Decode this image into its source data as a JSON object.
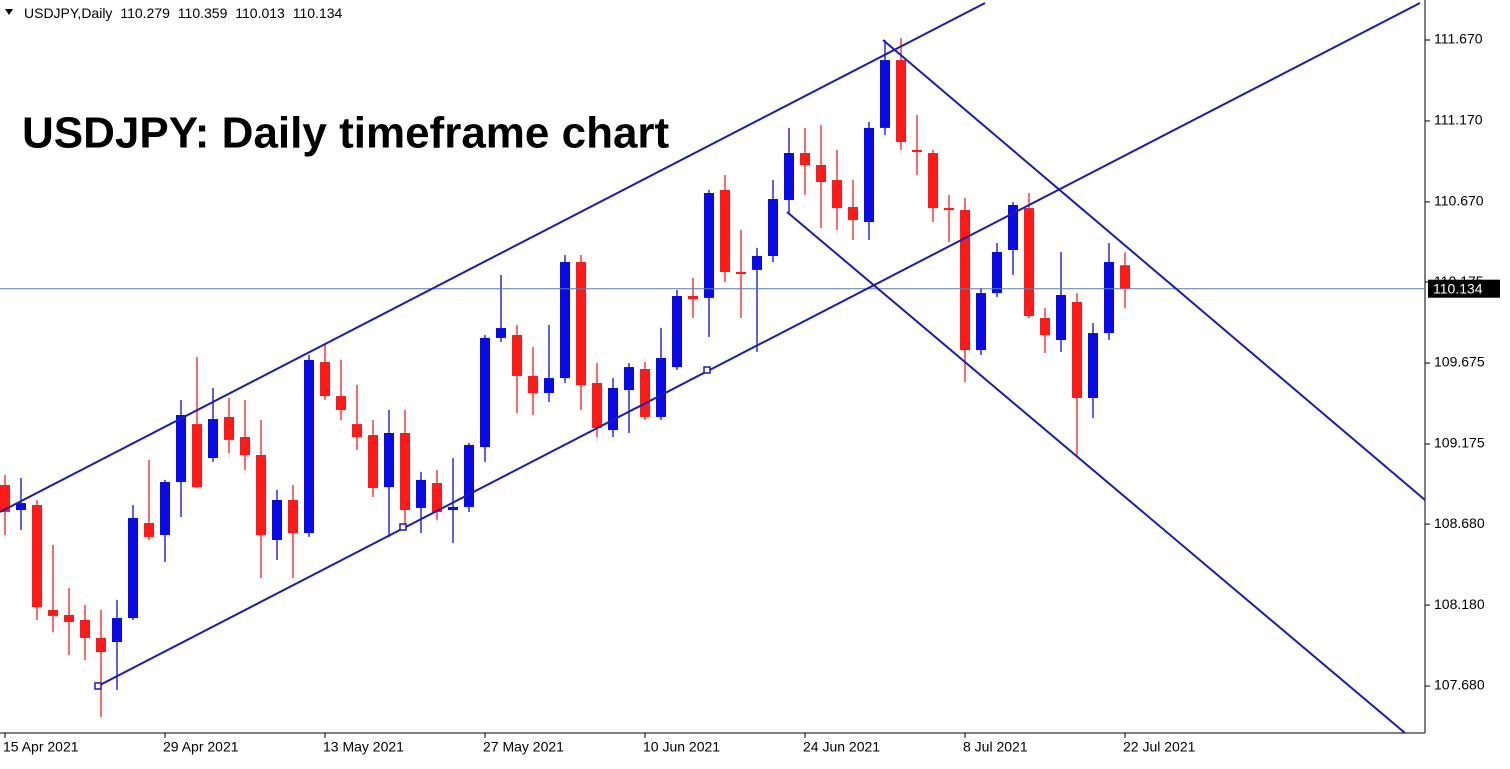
{
  "chart_data": {
    "type": "candlestick",
    "symbol": "USDJPY,Daily",
    "title": "USDJPY: Daily timeframe chart",
    "categories": [
      "15 Apr 2021",
      null,
      null,
      null,
      null,
      null,
      null,
      null,
      null,
      null,
      "29 Apr 2021",
      null,
      null,
      null,
      null,
      null,
      null,
      null,
      null,
      null,
      "13 May 2021",
      null,
      null,
      null,
      null,
      null,
      null,
      null,
      null,
      null,
      "27 May 2021",
      null,
      null,
      null,
      null,
      null,
      null,
      null,
      null,
      null,
      "10 Jun 2021",
      null,
      null,
      null,
      null,
      null,
      null,
      null,
      null,
      null,
      "24 Jun 2021",
      null,
      null,
      null,
      null,
      null,
      null,
      null,
      null,
      null,
      "8 Jul 2021",
      null,
      null,
      null,
      null,
      null,
      null,
      null,
      null,
      null,
      "22 Jul 2021"
    ],
    "open": [
      108.922,
      108.767,
      108.798,
      108.15,
      108.119,
      108.088,
      107.977,
      107.952,
      108.1,
      108.687,
      108.613,
      108.94,
      109.298,
      109.088,
      109.342,
      109.218,
      109.107,
      108.582,
      108.829,
      108.625,
      109.681,
      109.471,
      109.298,
      109.23,
      108.909,
      109.243,
      108.78,
      108.934,
      108.767,
      108.786,
      109.156,
      109.83,
      109.848,
      109.595,
      109.49,
      109.582,
      110.299,
      109.552,
      109.261,
      109.508,
      109.638,
      109.342,
      109.65,
      110.089,
      110.077,
      110.744,
      110.237,
      110.25,
      110.336,
      110.682,
      110.972,
      110.898,
      110.805,
      110.639,
      110.546,
      111.127,
      111.546,
      110.991,
      110.972,
      110.632,
      110.62,
      109.755,
      110.107,
      110.373,
      110.632,
      109.953,
      109.817,
      110.052,
      109.459,
      109.86,
      110.279
    ],
    "high": [
      108.983,
      108.965,
      108.829,
      108.551,
      108.286,
      108.181,
      108.15,
      108.211,
      108.798,
      109.076,
      108.953,
      109.447,
      109.712,
      109.521,
      109.459,
      109.447,
      109.323,
      108.891,
      108.922,
      109.725,
      109.786,
      109.694,
      109.539,
      109.323,
      109.385,
      109.385,
      109.002,
      109.014,
      109.088,
      109.181,
      109.848,
      110.219,
      109.91,
      109.774,
      109.91,
      110.342,
      110.342,
      109.675,
      109.582,
      109.675,
      109.681,
      109.891,
      110.126,
      110.2,
      110.744,
      110.836,
      110.497,
      110.385,
      110.805,
      111.127,
      111.127,
      111.145,
      110.991,
      110.805,
      111.164,
      111.67,
      111.682,
      111.207,
      110.991,
      110.713,
      110.694,
      110.138,
      110.416,
      110.669,
      110.725,
      110.015,
      110.361,
      110.107,
      109.922,
      110.416,
      110.359
    ],
    "low": [
      108.613,
      108.644,
      108.088,
      108.014,
      107.872,
      107.841,
      107.489,
      107.656,
      108.088,
      108.582,
      108.446,
      108.724,
      108.903,
      109.064,
      109.119,
      109.014,
      108.347,
      108.458,
      108.347,
      108.601,
      109.447,
      109.323,
      109.138,
      108.848,
      108.601,
      108.675,
      108.625,
      108.706,
      108.563,
      108.755,
      109.064,
      109.805,
      109.366,
      109.354,
      109.434,
      109.552,
      109.385,
      109.218,
      109.218,
      109.243,
      109.323,
      109.323,
      109.632,
      109.953,
      109.836,
      110.175,
      109.953,
      109.743,
      110.299,
      110.602,
      110.713,
      110.509,
      110.497,
      110.435,
      110.435,
      111.083,
      110.991,
      110.836,
      110.546,
      110.422,
      109.558,
      109.725,
      110.083,
      110.219,
      109.953,
      109.737,
      109.743,
      109.107,
      109.335,
      109.817,
      110.013
    ],
    "close": [
      108.755,
      108.81,
      108.168,
      108.113,
      108.076,
      107.977,
      107.89,
      108.1,
      108.718,
      108.601,
      108.94,
      109.354,
      108.909,
      109.329,
      109.2,
      109.107,
      108.613,
      108.829,
      108.625,
      109.694,
      109.471,
      109.385,
      109.218,
      108.903,
      109.243,
      108.767,
      108.953,
      108.755,
      108.786,
      109.169,
      109.83,
      109.891,
      109.595,
      109.49,
      109.582,
      110.299,
      109.539,
      109.274,
      109.521,
      109.65,
      109.342,
      109.706,
      110.089,
      110.07,
      110.725,
      110.237,
      110.225,
      110.336,
      110.688,
      110.972,
      110.898,
      110.793,
      110.632,
      110.558,
      111.127,
      111.546,
      111.04,
      110.978,
      110.632,
      110.62,
      109.755,
      110.107,
      110.361,
      110.651,
      109.965,
      109.848,
      110.095,
      109.459,
      109.86,
      110.299,
      110.134
    ],
    "up_color": "#0a0ae6",
    "down_color": "#ff1a1a",
    "ylim": [
      107.39,
      111.917
    ],
    "yticks": [
      {
        "value": 111.67,
        "label": "111.670"
      },
      {
        "value": 111.17,
        "label": "111.170"
      },
      {
        "value": 110.67,
        "label": "110.670"
      },
      {
        "value": 110.175,
        "label": "110.175"
      },
      {
        "value": 109.675,
        "label": "109.675"
      },
      {
        "value": 109.175,
        "label": "109.175"
      },
      {
        "value": 108.68,
        "label": "108.680"
      },
      {
        "value": 108.18,
        "label": "108.180"
      },
      {
        "value": 107.68,
        "label": "107.680"
      }
    ],
    "grid": false
  }
}
